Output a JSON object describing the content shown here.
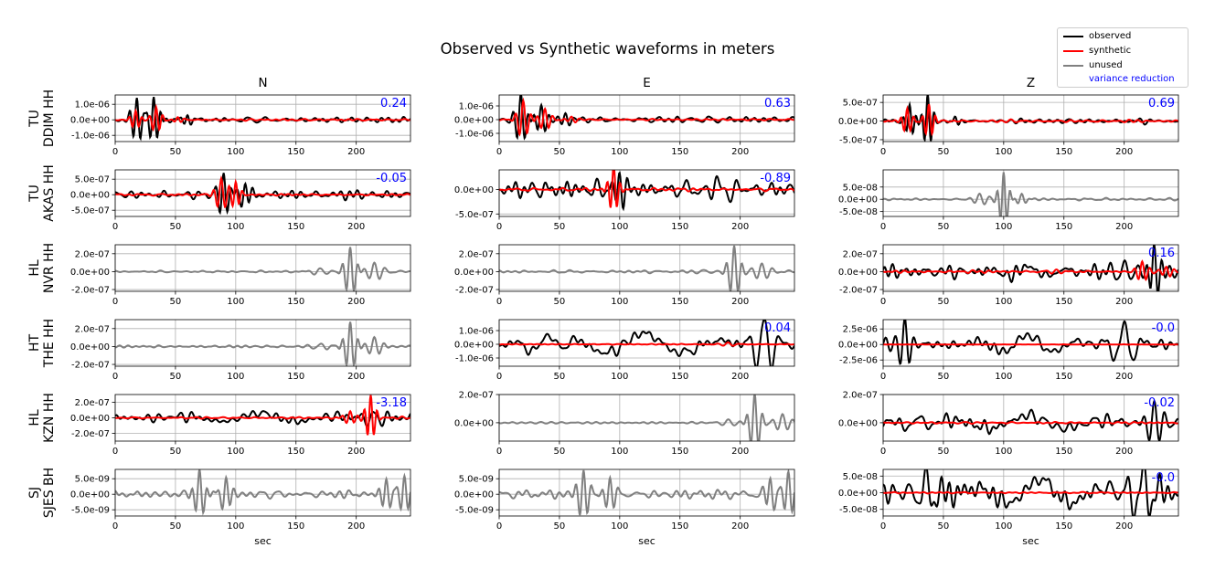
{
  "figure": {
    "title": "Observed vs Synthetic waveforms in meters",
    "xlabel": "sec",
    "column_titles": [
      "N",
      "E",
      "Z"
    ]
  },
  "legend": {
    "items": [
      {
        "label": "observed",
        "color": "#000000",
        "kind": "line"
      },
      {
        "label": "synthetic",
        "color": "#ff0000",
        "kind": "line"
      },
      {
        "label": "unused",
        "color": "#808080",
        "kind": "line"
      },
      {
        "label": "variance reduction",
        "color": "#0000ff",
        "kind": "text"
      }
    ]
  },
  "colors": {
    "observed": "#000000",
    "synthetic": "#ff0000",
    "unused": "#808080",
    "vr_text": "#0000ff",
    "grid": "#b0b0b0"
  },
  "chart_data": {
    "type": "line",
    "xlim": [
      0,
      245
    ],
    "xticks": [
      0,
      50,
      100,
      150,
      200
    ],
    "rows": [
      {
        "network": "TU",
        "station": "DDIM HH"
      },
      {
        "network": "TU",
        "station": "AKAS HH"
      },
      {
        "network": "HL",
        "station": "NVR HH"
      },
      {
        "network": "HT",
        "station": "THE HH"
      },
      {
        "network": "HL",
        "station": "KZN HH"
      },
      {
        "network": "SJ",
        "station": "SJES BH"
      }
    ],
    "panels": [
      {
        "row": 0,
        "col": 0,
        "used": true,
        "vr": "0.24",
        "ylim": [
          -1.4e-06,
          1.6e-06
        ],
        "yticks": [
          -1e-06,
          0,
          1e-06
        ],
        "ytick_labels": [
          "-1.0e-06",
          "0.0e+00",
          "1.0e-06"
        ],
        "obs_events": [
          [
            18,
            1.4e-06,
            5.5
          ],
          [
            32,
            1.6e-06,
            5.5
          ],
          [
            60,
            2.5e-07,
            5
          ]
        ],
        "obs_noise": 1.2e-07,
        "syn_events": [
          [
            17,
            6e-07,
            5
          ],
          [
            34,
            8e-07,
            5
          ],
          [
            52,
            1.5e-07,
            5
          ]
        ],
        "syn_noise": 4e-08
      },
      {
        "row": 0,
        "col": 1,
        "used": true,
        "vr": "0.63",
        "ylim": [
          -1.6e-06,
          1.8e-06
        ],
        "yticks": [
          -1e-06,
          0,
          1e-06
        ],
        "ytick_labels": [
          "-1.0e-06",
          "0.0e+00",
          "1.0e-06"
        ],
        "obs_events": [
          [
            18,
            1.8e-06,
            6
          ],
          [
            35,
            1e-06,
            6
          ],
          [
            55,
            4e-07,
            6
          ]
        ],
        "obs_noise": 1.5e-07,
        "syn_events": [
          [
            20,
            1.4e-06,
            6
          ],
          [
            38,
            8e-07,
            6
          ],
          [
            60,
            2e-07,
            6
          ]
        ],
        "syn_noise": 5e-08
      },
      {
        "row": 0,
        "col": 2,
        "used": true,
        "vr": "0.69",
        "ylim": [
          -5.5e-07,
          7e-07
        ],
        "yticks": [
          -5e-07,
          0,
          5e-07
        ],
        "ytick_labels": [
          "-5.0e-07",
          "0.0e+00",
          "5.0e-07"
        ],
        "obs_events": [
          [
            22,
            4e-07,
            5
          ],
          [
            37,
            7e-07,
            5
          ],
          [
            60,
            1e-07,
            5
          ]
        ],
        "obs_noise": 5e-08,
        "syn_events": [
          [
            20,
            3.5e-07,
            5
          ],
          [
            38,
            4.5e-07,
            5
          ]
        ],
        "syn_noise": 2e-08
      },
      {
        "row": 1,
        "col": 0,
        "used": true,
        "vr": "-0.05",
        "ylim": [
          -7e-07,
          8e-07
        ],
        "yticks": [
          -5e-07,
          0,
          5e-07
        ],
        "ytick_labels": [
          "-5.0e-07",
          "0.0e+00",
          "5.0e-07"
        ],
        "obs_events": [
          [
            90,
            8e-07,
            6
          ],
          [
            108,
            4e-07,
            6
          ],
          [
            40,
            1e-07,
            10
          ]
        ],
        "obs_noise": 1e-07,
        "syn_events": [
          [
            88,
            5e-07,
            6
          ],
          [
            100,
            4e-07,
            5
          ]
        ],
        "syn_noise": 2e-08
      },
      {
        "row": 1,
        "col": 1,
        "used": true,
        "vr": "-0.89",
        "ylim": [
          -5.5e-07,
          4e-07
        ],
        "yticks": [
          -5e-07,
          0
        ],
        "ytick_labels": [
          "-5.0e-07",
          "0.0e+00"
        ],
        "obs_events": [
          [
            100,
            4e-07,
            6
          ],
          [
            60,
            1.5e-07,
            12
          ],
          [
            180,
            1.2e-07,
            20
          ]
        ],
        "obs_noise": 1.2e-07,
        "syn_events": [
          [
            95,
            5e-07,
            5
          ]
        ],
        "syn_noise": 2e-08
      },
      {
        "row": 1,
        "col": 2,
        "used": false,
        "vr": "",
        "ylim": [
          -7e-08,
          1.2e-07
        ],
        "yticks": [
          -5e-08,
          0,
          5e-08
        ],
        "ytick_labels": [
          "-5.0e-08",
          "0.0e+00",
          "5.0e-08"
        ],
        "obs_events": [
          [
            100,
            1.1e-07,
            5
          ],
          [
            80,
            2e-08,
            8
          ],
          [
            115,
            2e-08,
            6
          ]
        ],
        "obs_noise": 4e-09
      },
      {
        "row": 2,
        "col": 0,
        "used": false,
        "vr": "",
        "ylim": [
          -2.2e-07,
          3e-07
        ],
        "yticks": [
          -2e-07,
          0,
          2e-07
        ],
        "ytick_labels": [
          "-2.0e-07",
          "0.0e+00",
          "2.0e-07"
        ],
        "obs_events": [
          [
            195,
            2.8e-07,
            6
          ],
          [
            215,
            1e-07,
            8
          ],
          [
            170,
            3e-08,
            10
          ]
        ],
        "obs_noise": 1e-08
      },
      {
        "row": 2,
        "col": 1,
        "used": false,
        "vr": "",
        "ylim": [
          -2.2e-07,
          3e-07
        ],
        "yticks": [
          -2e-07,
          0,
          2e-07
        ],
        "ytick_labels": [
          "-2.0e-07",
          "0.0e+00",
          "2.0e-07"
        ],
        "obs_events": [
          [
            195,
            2.8e-07,
            6
          ],
          [
            218,
            1e-07,
            8
          ],
          [
            170,
            3e-08,
            10
          ]
        ],
        "obs_noise": 1e-08
      },
      {
        "row": 2,
        "col": 2,
        "used": true,
        "vr": "0.16",
        "ylim": [
          -2.2e-07,
          3e-07
        ],
        "yticks": [
          -2e-07,
          0,
          2e-07
        ],
        "ytick_labels": [
          "-2.0e-07",
          "0.0e+00",
          "2.0e-07"
        ],
        "obs_events": [
          [
            225,
            2.8e-07,
            6
          ],
          [
            200,
            1.2e-07,
            12
          ],
          [
            120,
            6e-08,
            30
          ]
        ],
        "obs_noise": 5e-08,
        "syn_events": [
          [
            215,
            1.2e-07,
            6
          ],
          [
            235,
            6e-08,
            6
          ]
        ],
        "syn_noise": 1e-08
      },
      {
        "row": 3,
        "col": 0,
        "used": false,
        "vr": "",
        "ylim": [
          -2.2e-07,
          3e-07
        ],
        "yticks": [
          -2e-07,
          0,
          2e-07
        ],
        "ytick_labels": [
          "-2.0e-07",
          "0.0e+00",
          "2.0e-07"
        ],
        "obs_events": [
          [
            195,
            2.8e-07,
            6
          ],
          [
            215,
            1e-07,
            8
          ],
          [
            170,
            3e-08,
            10
          ]
        ],
        "obs_noise": 1e-08
      },
      {
        "row": 3,
        "col": 1,
        "used": true,
        "vr": "0.04",
        "ylim": [
          -1.6e-06,
          1.8e-06
        ],
        "yticks": [
          -1e-06,
          0,
          1e-06
        ],
        "ytick_labels": [
          "-1.0e-06",
          "0.0e+00",
          "1.0e-06"
        ],
        "obs_events": [
          [
            220,
            1.8e-06,
            12
          ],
          [
            120,
            8e-07,
            60
          ],
          [
            40,
            6e-07,
            25
          ]
        ],
        "obs_noise": 3e-07,
        "syn_events": [
          [
            190,
            1.5e-07,
            8
          ]
        ],
        "syn_noise": 2e-08
      },
      {
        "row": 3,
        "col": 2,
        "used": true,
        "vr": "-0.0",
        "ylim": [
          -3.5e-06,
          4e-06
        ],
        "yticks": [
          -2.5e-06,
          0,
          2.5e-06
        ],
        "ytick_labels": [
          "-2.5e-06",
          "0.0e+00",
          "2.5e-06"
        ],
        "obs_events": [
          [
            18,
            4e-06,
            7
          ],
          [
            200,
            3.5e-06,
            15
          ],
          [
            120,
            1.5e-06,
            40
          ]
        ],
        "obs_noise": 6e-07,
        "syn_events": [],
        "syn_noise": 2e-08
      },
      {
        "row": 4,
        "col": 0,
        "used": true,
        "vr": "-3.18",
        "ylim": [
          -3e-07,
          3e-07
        ],
        "yticks": [
          -2e-07,
          0,
          2e-07
        ],
        "ytick_labels": [
          "-2.0e-07",
          "0.0e+00",
          "2.0e-07"
        ],
        "obs_events": [
          [
            215,
            1.2e-07,
            10
          ],
          [
            120,
            6e-08,
            60
          ]
        ],
        "obs_noise": 4e-08,
        "syn_events": [
          [
            212,
            3e-07,
            5
          ],
          [
            195,
            8e-08,
            6
          ]
        ],
        "syn_noise": 1e-08
      },
      {
        "row": 4,
        "col": 1,
        "used": false,
        "vr": "",
        "ylim": [
          -1.3e-07,
          2e-07
        ],
        "yticks": [
          0,
          2e-07
        ],
        "ytick_labels": [
          "0.0e+00",
          "2.0e-07"
        ],
        "obs_events": [
          [
            212,
            2e-07,
            6
          ],
          [
            235,
            6e-08,
            8
          ],
          [
            190,
            2e-08,
            10
          ]
        ],
        "obs_noise": 5e-09
      },
      {
        "row": 4,
        "col": 2,
        "used": true,
        "vr": "-0.02",
        "ylim": [
          -1.3e-07,
          2e-07
        ],
        "yticks": [
          0,
          2e-07
        ],
        "ytick_labels": [
          "0.0e+00",
          "2.0e-07"
        ],
        "obs_events": [
          [
            225,
            1.3e-07,
            8
          ],
          [
            120,
            5e-08,
            60
          ],
          [
            30,
            4e-08,
            20
          ]
        ],
        "obs_noise": 3e-08,
        "syn_events": [],
        "syn_noise": 4e-09
      },
      {
        "row": 5,
        "col": 0,
        "used": false,
        "vr": "",
        "ylim": [
          -7e-09,
          8e-09
        ],
        "yticks": [
          -5e-09,
          0,
          5e-09
        ],
        "ytick_labels": [
          "-5.0e-09",
          "0.0e+00",
          "5.0e-09"
        ],
        "obs_events": [
          [
            70,
            8e-09,
            6
          ],
          [
            92,
            5e-09,
            6
          ],
          [
            240,
            7e-09,
            6
          ],
          [
            225,
            5e-09,
            6
          ]
        ],
        "obs_noise": 1e-09
      },
      {
        "row": 5,
        "col": 1,
        "used": false,
        "vr": "",
        "ylim": [
          -7e-09,
          8e-09
        ],
        "yticks": [
          -5e-09,
          0,
          5e-09
        ],
        "ytick_labels": [
          "-5.0e-09",
          "0.0e+00",
          "5.0e-09"
        ],
        "obs_events": [
          [
            70,
            8e-09,
            6
          ],
          [
            92,
            5e-09,
            6
          ],
          [
            240,
            7e-09,
            6
          ],
          [
            225,
            5e-09,
            6
          ]
        ],
        "obs_noise": 1e-09
      },
      {
        "row": 5,
        "col": 2,
        "used": true,
        "vr": "-0.0",
        "ylim": [
          -7e-08,
          7e-08
        ],
        "yticks": [
          -5e-08,
          0,
          5e-08
        ],
        "ytick_labels": [
          "-5.0e-08",
          "0.0e+00",
          "5.0e-08"
        ],
        "obs_events": [
          [
            35,
            6e-08,
            12
          ],
          [
            215,
            7e-08,
            12
          ],
          [
            130,
            4e-08,
            50
          ]
        ],
        "obs_noise": 2.5e-08,
        "syn_events": [],
        "syn_noise": 1.5e-09
      }
    ]
  }
}
